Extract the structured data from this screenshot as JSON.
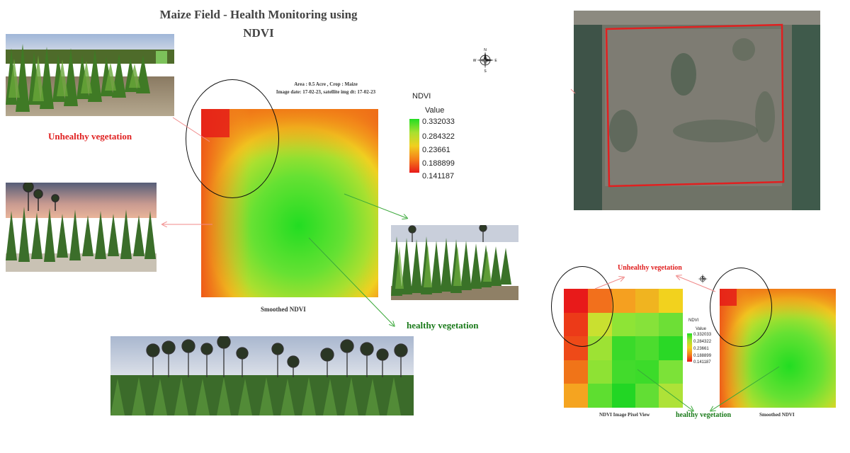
{
  "title": {
    "line1": "Maize  Field - Health Monitoring using",
    "line2": "NDVI"
  },
  "field_info": {
    "line1": "Area : 0.5 Acre , Crop : Maize",
    "line2": "Image date:  17-02-23, satellite img dt:  17-02-23"
  },
  "labels": {
    "unhealthy_left": "Unhealthy vegetation",
    "healthy_center": "healthy vegetation",
    "unhealthy_right": "Unhealthy vegetation",
    "healthy_right": "healthy vegetation"
  },
  "captions": {
    "smoothed_main": "Smoothed NDVI",
    "pixel_view": "NDVI Image Pixel View",
    "smoothed_small": "Smoothed NDVI"
  },
  "legend": {
    "title": "NDVI",
    "subtitle": "Value",
    "values": [
      "0.332033",
      "0.284322",
      "0.23661",
      "0.188899",
      "0.141187"
    ]
  },
  "small_legend": {
    "title": "NDVI",
    "subtitle": "Value",
    "values": [
      "0.332033",
      "0.284322",
      "0.23661",
      "0.188899",
      "0.141187"
    ]
  },
  "compass": {
    "n": "N",
    "s": "S",
    "e": "E",
    "w": "W"
  },
  "colors": {
    "unhealthy": "#e02020",
    "healthy": "#1a7a1a",
    "field_outline": "#e02020"
  }
}
